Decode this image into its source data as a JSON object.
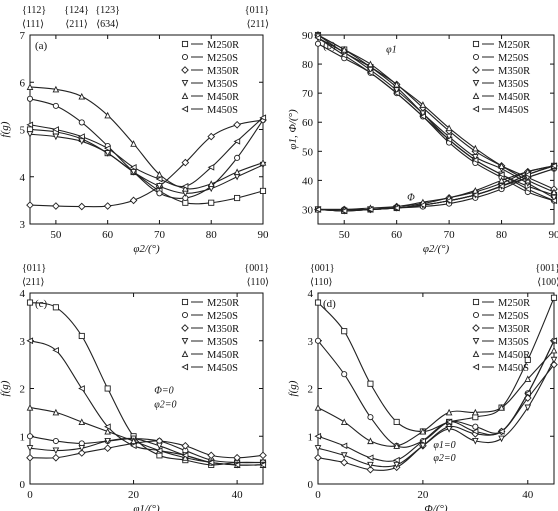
{
  "chart_data": [
    {
      "type": "line",
      "panel": "(a)",
      "xlabel": "φ2/(°)",
      "ylabel": "f(g)",
      "xlim": [
        45,
        90
      ],
      "ylim": [
        3,
        7
      ],
      "xticks": [
        "50",
        "60",
        "70",
        "80",
        "90"
      ],
      "yticks": [
        "3",
        "4",
        "5",
        "6",
        "7"
      ],
      "top_annotations": [
        {
          "x": 45,
          "lines": [
            "{112}",
            "⟨111⟩"
          ]
        },
        {
          "x": 54,
          "lines": [
            "{124}",
            "⟨211⟩"
          ]
        },
        {
          "x": 60,
          "lines": [
            "{123}",
            "⟨634⟩"
          ]
        },
        {
          "x": 90,
          "lines": [
            "{011}",
            "⟨211⟩"
          ]
        }
      ],
      "legend_position": "top-right",
      "series": [
        {
          "name": "M250R",
          "marker": "square",
          "x": [
            45,
            50,
            55,
            60,
            65,
            70,
            75,
            80,
            85,
            90
          ],
          "y": [
            5.0,
            4.95,
            4.8,
            4.5,
            4.1,
            3.7,
            3.45,
            3.45,
            3.55,
            3.7
          ]
        },
        {
          "name": "M250S",
          "marker": "circle",
          "x": [
            45,
            50,
            55,
            60,
            65,
            70,
            75,
            80,
            85,
            90
          ],
          "y": [
            5.65,
            5.5,
            5.15,
            4.65,
            4.1,
            3.65,
            3.55,
            3.8,
            4.4,
            5.2
          ]
        },
        {
          "name": "M350R",
          "marker": "diamond",
          "x": [
            45,
            50,
            55,
            60,
            65,
            70,
            75,
            80,
            85,
            90
          ],
          "y": [
            3.4,
            3.38,
            3.37,
            3.38,
            3.5,
            3.8,
            4.3,
            4.85,
            5.1,
            5.2
          ]
        },
        {
          "name": "M350S",
          "marker": "tri-down",
          "x": [
            45,
            50,
            55,
            60,
            65,
            70,
            75,
            80,
            85,
            90
          ],
          "y": [
            4.9,
            4.85,
            4.75,
            4.5,
            4.1,
            3.8,
            3.65,
            3.75,
            4.0,
            4.25
          ]
        },
        {
          "name": "M450R",
          "marker": "tri-up",
          "x": [
            45,
            50,
            55,
            60,
            65,
            70,
            75,
            80,
            85,
            90
          ],
          "y": [
            5.9,
            5.85,
            5.7,
            5.3,
            4.7,
            4.05,
            3.75,
            3.85,
            4.1,
            4.3
          ]
        },
        {
          "name": "M450S",
          "marker": "tri-left",
          "x": [
            45,
            50,
            55,
            60,
            65,
            70,
            75,
            80,
            85,
            90
          ],
          "y": [
            5.1,
            5.0,
            4.85,
            4.6,
            4.2,
            3.95,
            3.8,
            4.2,
            4.75,
            5.25
          ]
        }
      ]
    },
    {
      "type": "line",
      "panel": "(b)",
      "xlabel": "φ2/(°)",
      "ylabel": "φ1, Φ/(°)",
      "xlim": [
        45,
        90
      ],
      "ylim": [
        25,
        90
      ],
      "xticks": [
        "50",
        "60",
        "70",
        "80",
        "90"
      ],
      "yticks": [
        "30",
        "40",
        "50",
        "60",
        "70",
        "80",
        "90"
      ],
      "legend_position": "top-right",
      "annotations": [
        {
          "text": "φ1",
          "x": 58,
          "y": 84
        },
        {
          "text": "Φ",
          "x": 62,
          "y": 33
        }
      ],
      "series": [
        {
          "name": "M250R",
          "marker": "square",
          "group": "phi1",
          "x": [
            45,
            50,
            55,
            60,
            65,
            70,
            75,
            80,
            85,
            90
          ],
          "y": [
            90,
            85,
            79,
            72,
            63,
            54,
            47,
            42,
            38,
            35
          ]
        },
        {
          "name": "M250S",
          "marker": "circle",
          "group": "phi1",
          "x": [
            45,
            50,
            55,
            60,
            65,
            70,
            75,
            80,
            85,
            90
          ],
          "y": [
            87,
            82,
            77,
            70,
            62,
            53,
            46,
            41,
            36,
            33
          ]
        },
        {
          "name": "M350R",
          "marker": "diamond",
          "group": "phi1",
          "x": [
            45,
            50,
            55,
            60,
            65,
            70,
            75,
            80,
            85,
            90
          ],
          "y": [
            90,
            84,
            79,
            73,
            65,
            57,
            50,
            45,
            41,
            37
          ]
        },
        {
          "name": "M350S",
          "marker": "tri-down",
          "group": "phi1",
          "x": [
            45,
            50,
            55,
            60,
            65,
            70,
            75,
            80,
            85,
            90
          ],
          "y": [
            89,
            84,
            78,
            71,
            63,
            55,
            48,
            44,
            39,
            34
          ]
        },
        {
          "name": "M450R",
          "marker": "tri-up",
          "group": "phi1",
          "x": [
            45,
            50,
            55,
            60,
            65,
            70,
            75,
            80,
            85,
            90
          ],
          "y": [
            90,
            85,
            80,
            73,
            66,
            58,
            51,
            45,
            40,
            36
          ]
        },
        {
          "name": "M450S",
          "marker": "tri-left",
          "group": "phi1",
          "x": [
            45,
            50,
            55,
            60,
            65,
            70,
            75,
            80,
            85,
            90
          ],
          "y": [
            89,
            83,
            77,
            70,
            62,
            54,
            47,
            42,
            37,
            33
          ]
        },
        {
          "name": "M250R",
          "marker": "square",
          "group": "Phi",
          "x": [
            45,
            50,
            55,
            60,
            65,
            70,
            75,
            80,
            85,
            90
          ],
          "y": [
            30,
            29.5,
            30,
            30.5,
            31.5,
            33,
            35,
            38,
            42,
            45
          ]
        },
        {
          "name": "M250S",
          "marker": "circle",
          "group": "Phi",
          "x": [
            45,
            50,
            55,
            60,
            65,
            70,
            75,
            80,
            85,
            90
          ],
          "y": [
            30,
            30,
            30,
            30.5,
            31,
            32,
            34,
            37,
            41,
            44
          ]
        },
        {
          "name": "M350R",
          "marker": "diamond",
          "group": "Phi",
          "x": [
            45,
            50,
            55,
            60,
            65,
            70,
            75,
            80,
            85,
            90
          ],
          "y": [
            30,
            30,
            30,
            31,
            32,
            34,
            36,
            39,
            43,
            45
          ]
        },
        {
          "name": "M350S",
          "marker": "tri-down",
          "group": "Phi",
          "x": [
            45,
            50,
            55,
            60,
            65,
            70,
            75,
            80,
            85,
            90
          ],
          "y": [
            30,
            29.5,
            30,
            30.5,
            31.5,
            33,
            35,
            38,
            41,
            44
          ]
        },
        {
          "name": "M450R",
          "marker": "tri-up",
          "group": "Phi",
          "x": [
            45,
            50,
            55,
            60,
            65,
            70,
            75,
            80,
            85,
            90
          ],
          "y": [
            30,
            30,
            30.5,
            31,
            32.5,
            34,
            36.5,
            40,
            43,
            45
          ]
        },
        {
          "name": "M450S",
          "marker": "tri-left",
          "group": "Phi",
          "x": [
            45,
            50,
            55,
            60,
            65,
            70,
            75,
            80,
            85,
            90
          ],
          "y": [
            30,
            29.5,
            30,
            30.5,
            31.5,
            33,
            35,
            38,
            42,
            45
          ]
        }
      ]
    },
    {
      "type": "line",
      "panel": "(c)",
      "xlabel": "φ1/(°)",
      "ylabel": "f(g)",
      "xlim": [
        0,
        45
      ],
      "ylim": [
        0,
        4
      ],
      "xticks": [
        "0",
        "20",
        "40"
      ],
      "yticks": [
        "0",
        "1",
        "2",
        "3",
        "4"
      ],
      "top_annotations": [
        {
          "x": 0,
          "lines": [
            "{011}",
            "⟨211⟩"
          ]
        },
        {
          "x": 45,
          "lines": [
            "{001}",
            "⟨110⟩"
          ]
        }
      ],
      "annotations": [
        {
          "text": "Φ=0",
          "x": 24,
          "y": 1.9
        },
        {
          "text": "φ2=0",
          "x": 24,
          "y": 1.6
        }
      ],
      "legend_position": "top-right",
      "series": [
        {
          "name": "M250R",
          "marker": "square",
          "x": [
            0,
            5,
            10,
            15,
            20,
            25,
            30,
            35,
            40,
            45
          ],
          "y": [
            3.8,
            3.7,
            3.1,
            2.0,
            1.0,
            0.6,
            0.5,
            0.4,
            0.45,
            0.45
          ]
        },
        {
          "name": "M250S",
          "marker": "circle",
          "x": [
            0,
            5,
            10,
            15,
            20,
            25,
            30,
            35,
            40,
            45
          ],
          "y": [
            1.0,
            0.9,
            0.85,
            0.9,
            0.95,
            0.9,
            0.7,
            0.5,
            0.45,
            0.45
          ]
        },
        {
          "name": "M350R",
          "marker": "diamond",
          "x": [
            0,
            5,
            10,
            15,
            20,
            25,
            30,
            35,
            40,
            45
          ],
          "y": [
            0.55,
            0.55,
            0.65,
            0.75,
            0.85,
            0.9,
            0.8,
            0.6,
            0.55,
            0.6
          ]
        },
        {
          "name": "M350S",
          "marker": "tri-down",
          "x": [
            0,
            5,
            10,
            15,
            20,
            25,
            30,
            35,
            40,
            45
          ],
          "y": [
            0.75,
            0.7,
            0.75,
            0.9,
            0.95,
            0.8,
            0.6,
            0.45,
            0.4,
            0.4
          ]
        },
        {
          "name": "M450R",
          "marker": "tri-up",
          "x": [
            0,
            5,
            10,
            15,
            20,
            25,
            30,
            35,
            40,
            45
          ],
          "y": [
            1.6,
            1.5,
            1.3,
            1.1,
            0.9,
            0.7,
            0.55,
            0.45,
            0.4,
            0.4
          ]
        },
        {
          "name": "M450S",
          "marker": "tri-left",
          "x": [
            0,
            5,
            10,
            15,
            20,
            25,
            30,
            35,
            40,
            45
          ],
          "y": [
            3.0,
            2.8,
            2.0,
            1.2,
            0.8,
            0.7,
            0.6,
            0.45,
            0.4,
            0.4
          ]
        }
      ]
    },
    {
      "type": "line",
      "panel": "(d)",
      "xlabel": "Φ/(°)",
      "ylabel": "f(g)",
      "xlim": [
        0,
        45
      ],
      "ylim": [
        0,
        4
      ],
      "xticks": [
        "0",
        "20",
        "40"
      ],
      "yticks": [
        "0",
        "1",
        "2",
        "3",
        "4"
      ],
      "top_annotations": [
        {
          "x": 0,
          "lines": [
            "{001}",
            "⟨110⟩"
          ]
        },
        {
          "x": 45,
          "lines": [
            "{001}",
            "⟨100⟩"
          ]
        }
      ],
      "annotations": [
        {
          "text": "φ1=0",
          "x": 22,
          "y": 0.75
        },
        {
          "text": "φ2=0",
          "x": 22,
          "y": 0.48
        }
      ],
      "legend_position": "top-right",
      "series": [
        {
          "name": "M250R",
          "marker": "square",
          "x": [
            0,
            5,
            10,
            15,
            20,
            25,
            30,
            35,
            40,
            45
          ],
          "y": [
            3.8,
            3.2,
            2.1,
            1.3,
            1.1,
            1.3,
            1.4,
            1.6,
            2.6,
            3.9
          ]
        },
        {
          "name": "M250S",
          "marker": "circle",
          "x": [
            0,
            5,
            10,
            15,
            20,
            25,
            30,
            35,
            40,
            45
          ],
          "y": [
            3.0,
            2.3,
            1.4,
            0.8,
            0.9,
            1.3,
            1.2,
            1.1,
            1.9,
            3.0
          ]
        },
        {
          "name": "M350R",
          "marker": "diamond",
          "x": [
            0,
            5,
            10,
            15,
            20,
            25,
            30,
            35,
            40,
            45
          ],
          "y": [
            0.55,
            0.45,
            0.3,
            0.35,
            0.8,
            1.2,
            1.05,
            1.1,
            1.8,
            2.5
          ]
        },
        {
          "name": "M350S",
          "marker": "tri-down",
          "x": [
            0,
            5,
            10,
            15,
            20,
            25,
            30,
            35,
            40,
            45
          ],
          "y": [
            0.75,
            0.6,
            0.4,
            0.4,
            0.8,
            1.15,
            0.9,
            0.95,
            1.6,
            2.6
          ]
        },
        {
          "name": "M450R",
          "marker": "tri-up",
          "x": [
            0,
            5,
            10,
            15,
            20,
            25,
            30,
            35,
            40,
            45
          ],
          "y": [
            1.6,
            1.3,
            0.9,
            0.8,
            1.1,
            1.5,
            1.5,
            1.6,
            2.2,
            2.8
          ]
        },
        {
          "name": "M450S",
          "marker": "tri-left",
          "x": [
            0,
            5,
            10,
            15,
            20,
            25,
            30,
            35,
            40,
            45
          ],
          "y": [
            1.0,
            0.8,
            0.55,
            0.5,
            0.9,
            1.3,
            1.1,
            1.1,
            1.9,
            3.0
          ]
        }
      ]
    }
  ]
}
